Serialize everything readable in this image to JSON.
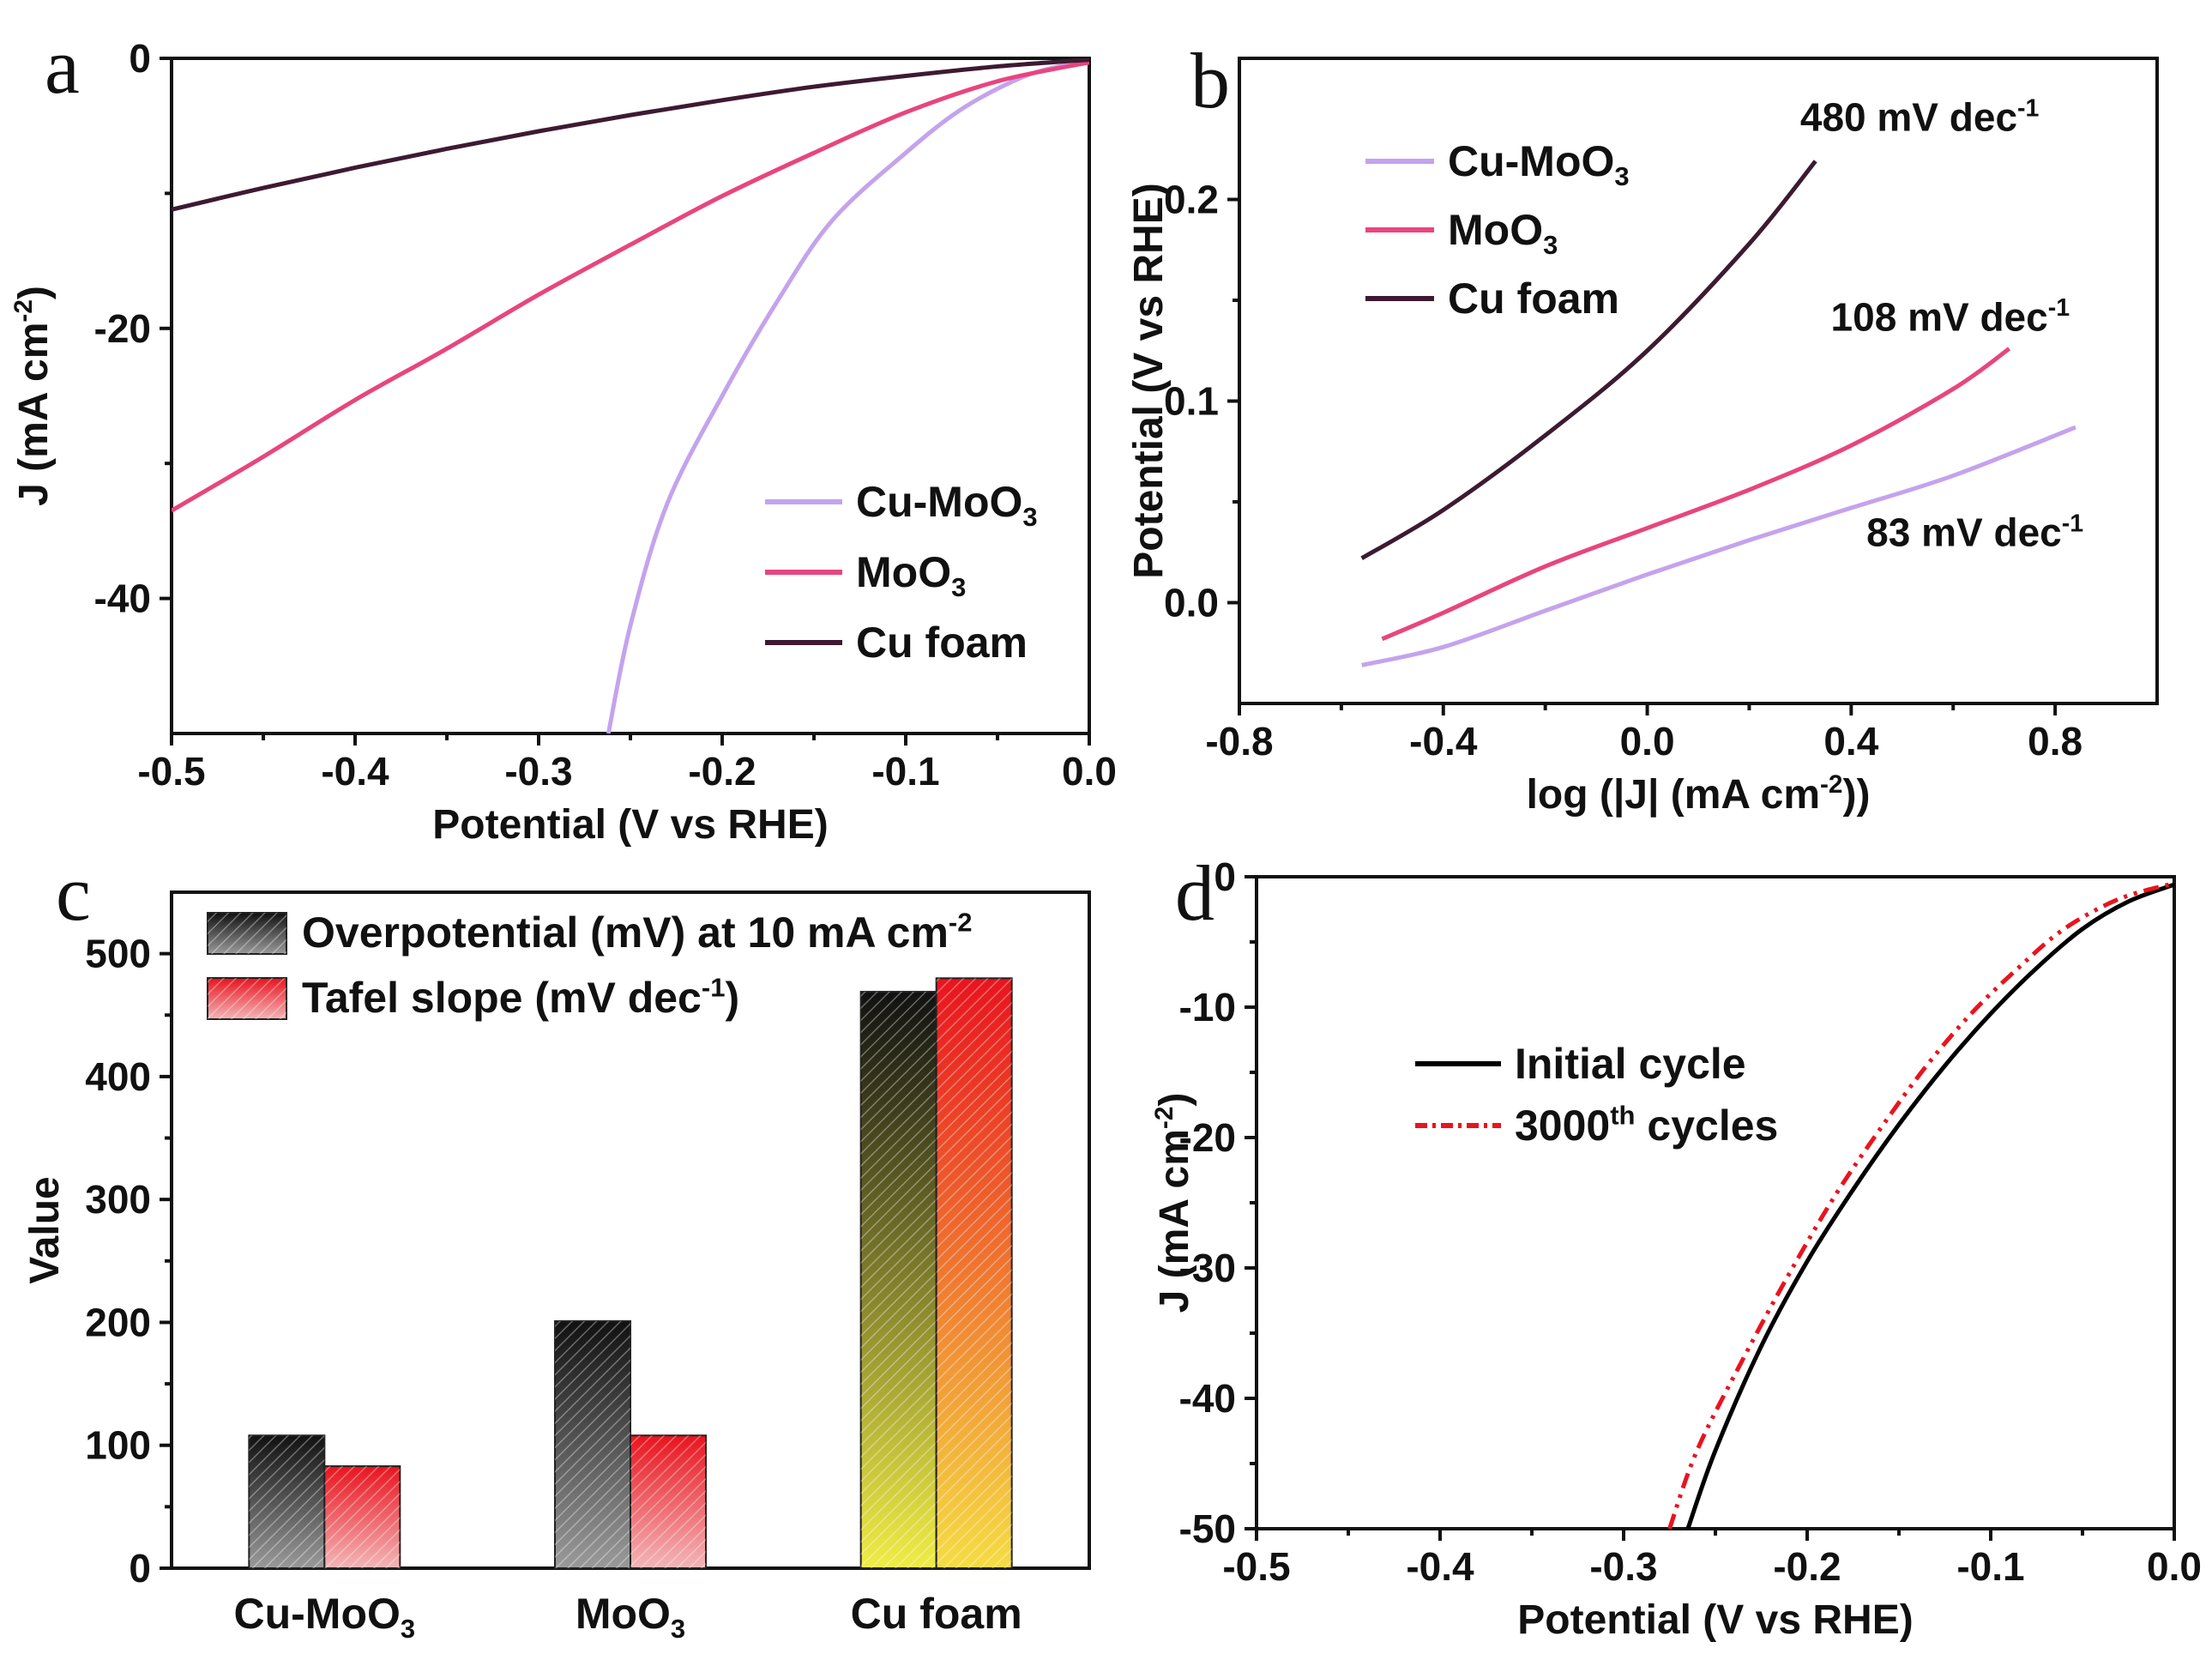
{
  "colors": {
    "cu_moo3": "#c4a3ec",
    "moo3": "#e8457e",
    "cu_foam": "#3d1a32",
    "initial": "#000000",
    "cycles3000": "#e8141e"
  },
  "chart_data": [
    {
      "panel": "a",
      "type": "line",
      "xlabel": "Potential (V vs RHE)",
      "ylabel": "J (mA cm",
      "ylabel_sup": "-2",
      "ylabel_end": ")",
      "xlim": [
        -0.5,
        0.0
      ],
      "ylim": [
        -50,
        0
      ],
      "xticks": [
        "-0.5",
        "-0.4",
        "-0.3",
        "-0.2",
        "-0.1",
        "0.0"
      ],
      "yticks": [
        "0",
        "-20",
        "-40"
      ],
      "legend": [
        {
          "name": "Cu-MoO",
          "sub": "3"
        },
        {
          "name": "MoO",
          "sub": "3"
        },
        {
          "name": "Cu foam",
          "sub": ""
        }
      ],
      "series": [
        {
          "name": "Cu-MoO3",
          "x": [
            -0.262,
            -0.25,
            -0.23,
            -0.2,
            -0.17,
            -0.14,
            -0.1,
            -0.07,
            -0.04,
            -0.02,
            0.0
          ],
          "y": [
            -50,
            -42,
            -33,
            -25,
            -18,
            -12,
            -7,
            -3.8,
            -1.6,
            -0.7,
            -0.3
          ]
        },
        {
          "name": "MoO3",
          "x": [
            -0.5,
            -0.45,
            -0.4,
            -0.35,
            -0.3,
            -0.25,
            -0.2,
            -0.15,
            -0.1,
            -0.05,
            0.0
          ],
          "y": [
            -33.5,
            -29.5,
            -25.3,
            -21.5,
            -17.5,
            -13.8,
            -10.2,
            -7.0,
            -4.0,
            -1.7,
            -0.3
          ]
        },
        {
          "name": "Cu foam",
          "x": [
            -0.5,
            -0.45,
            -0.4,
            -0.35,
            -0.3,
            -0.25,
            -0.2,
            -0.15,
            -0.1,
            -0.05,
            0.0
          ],
          "y": [
            -11.2,
            -9.6,
            -8.1,
            -6.7,
            -5.4,
            -4.2,
            -3.1,
            -2.1,
            -1.3,
            -0.6,
            -0.1
          ]
        }
      ]
    },
    {
      "panel": "b",
      "type": "line",
      "xlabel": "log (|J| (mA cm",
      "xlabel_sup": "-2",
      "xlabel_end": "))",
      "ylabel": "Potential (V vs RHE)",
      "xlim": [
        -0.8,
        1.0
      ],
      "ylim": [
        -0.05,
        0.27
      ],
      "xticks": [
        "-0.8",
        "-0.4",
        "0.0",
        "0.4",
        "0.8"
      ],
      "yticks": [
        "0.0",
        "0.1",
        "0.2"
      ],
      "legend": [
        {
          "name": "Cu-MoO",
          "sub": "3"
        },
        {
          "name": "MoO",
          "sub": "3"
        },
        {
          "name": "Cu foam",
          "sub": ""
        }
      ],
      "annotations": [
        {
          "text": "480 mV dec",
          "sup": "-1",
          "x": 0.3,
          "y": 0.234
        },
        {
          "text": "108 mV dec",
          "sup": "-1",
          "x": 0.36,
          "y": 0.135
        },
        {
          "text": "83 mV dec",
          "sup": "-1",
          "x": 0.43,
          "y": 0.028
        }
      ],
      "series": [
        {
          "name": "Cu-MoO3",
          "x": [
            -0.56,
            -0.4,
            -0.2,
            0.0,
            0.2,
            0.4,
            0.6,
            0.84
          ],
          "y": [
            -0.031,
            -0.022,
            -0.004,
            0.014,
            0.031,
            0.047,
            0.063,
            0.087
          ]
        },
        {
          "name": "MoO3",
          "x": [
            -0.52,
            -0.4,
            -0.2,
            0.0,
            0.2,
            0.4,
            0.6,
            0.71
          ],
          "y": [
            -0.018,
            -0.005,
            0.018,
            0.037,
            0.056,
            0.078,
            0.106,
            0.126
          ]
        },
        {
          "name": "Cu foam",
          "x": [
            -0.56,
            -0.4,
            -0.2,
            0.0,
            0.2,
            0.33
          ],
          "y": [
            0.022,
            0.046,
            0.083,
            0.125,
            0.178,
            0.219
          ]
        }
      ]
    },
    {
      "panel": "c",
      "type": "bar",
      "ylabel": "Value",
      "ylim": [
        0,
        550
      ],
      "yticks": [
        "0",
        "100",
        "200",
        "300",
        "400",
        "500"
      ],
      "categories": [
        {
          "name": "Cu-MoO",
          "sub": "3"
        },
        {
          "name": "MoO",
          "sub": "3"
        },
        {
          "name": "Cu foam",
          "sub": ""
        }
      ],
      "legend": [
        {
          "name": "Overpotential (mV) at 10 mA cm",
          "sup": "-2",
          "end": ""
        },
        {
          "name": "Tafel slope (mV dec",
          "sup": "-1",
          "end": ")"
        }
      ],
      "series": [
        {
          "name": "Overpotential (mV) at 10 mA cm-2",
          "values": [
            108,
            201,
            469
          ]
        },
        {
          "name": "Tafel slope (mV dec-1)",
          "values": [
            83,
            108,
            480
          ]
        }
      ]
    },
    {
      "panel": "d",
      "type": "line",
      "xlabel": "Potential (V vs RHE)",
      "ylabel": "J (mA cm",
      "ylabel_sup": "-2",
      "ylabel_end": ")",
      "xlim": [
        -0.5,
        0.0
      ],
      "ylim": [
        -50,
        0
      ],
      "xticks": [
        "-0.5",
        "-0.4",
        "-0.3",
        "-0.2",
        "-0.1",
        "0.0"
      ],
      "yticks": [
        "0",
        "-10",
        "-20",
        "-30",
        "-40",
        "-50"
      ],
      "legend": [
        {
          "name": "Initial cycle",
          "sup": ""
        },
        {
          "name": "3000",
          "sup": "th",
          "end": " cycles"
        }
      ],
      "series": [
        {
          "name": "Initial cycle",
          "x": [
            -0.265,
            -0.25,
            -0.225,
            -0.2,
            -0.175,
            -0.15,
            -0.125,
            -0.1,
            -0.075,
            -0.05,
            -0.025,
            0.0
          ],
          "y": [
            -50,
            -44,
            -36,
            -29.5,
            -24,
            -19,
            -14.5,
            -10.5,
            -7.0,
            -4.0,
            -1.9,
            -0.6
          ]
        },
        {
          "name": "3000th cycles",
          "x": [
            -0.275,
            -0.26,
            -0.235,
            -0.21,
            -0.185,
            -0.16,
            -0.135,
            -0.11,
            -0.085,
            -0.06,
            -0.03,
            0.0
          ],
          "y": [
            -50,
            -44,
            -37,
            -30.5,
            -24.5,
            -19.3,
            -14.5,
            -10.4,
            -7.0,
            -4.0,
            -1.7,
            -0.5
          ]
        }
      ]
    }
  ],
  "panel_labels": [
    "a",
    "b",
    "c",
    "d"
  ]
}
